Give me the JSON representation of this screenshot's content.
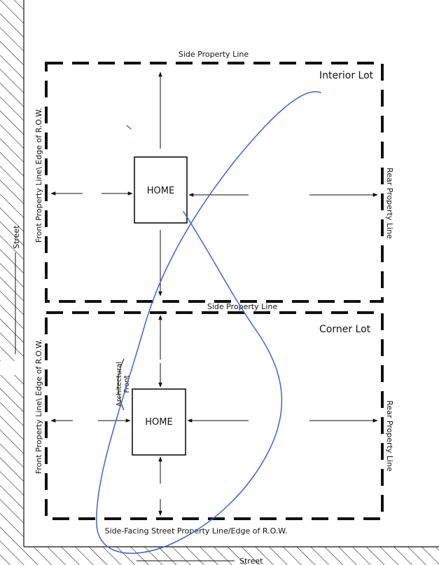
{
  "interior_lot": {
    "title": "Interior Lot",
    "top_label": "Side Property Line",
    "left_label": "Front Property Line\\ Edge of R.O.W.",
    "right_label": "Rear Property Line",
    "home_label": "HOME"
  },
  "corner_lot": {
    "title": "Corner Lot",
    "top_label": "Side Property Line",
    "left_label": "Front Property Line\\ Edge of R.O.W.",
    "right_label": "Rear Property Line",
    "bottom_label": "Side-Facing Street Property Line/Edge of R.O.W.",
    "home_label": "HOME",
    "architectural_front_line1": "Architectural",
    "architectural_front_line2": "Front"
  },
  "streets": {
    "left_label": "Street",
    "bottom_label": "Street"
  },
  "colors": {
    "ink": "#111111",
    "annotation_pen": "#3a64d8"
  }
}
